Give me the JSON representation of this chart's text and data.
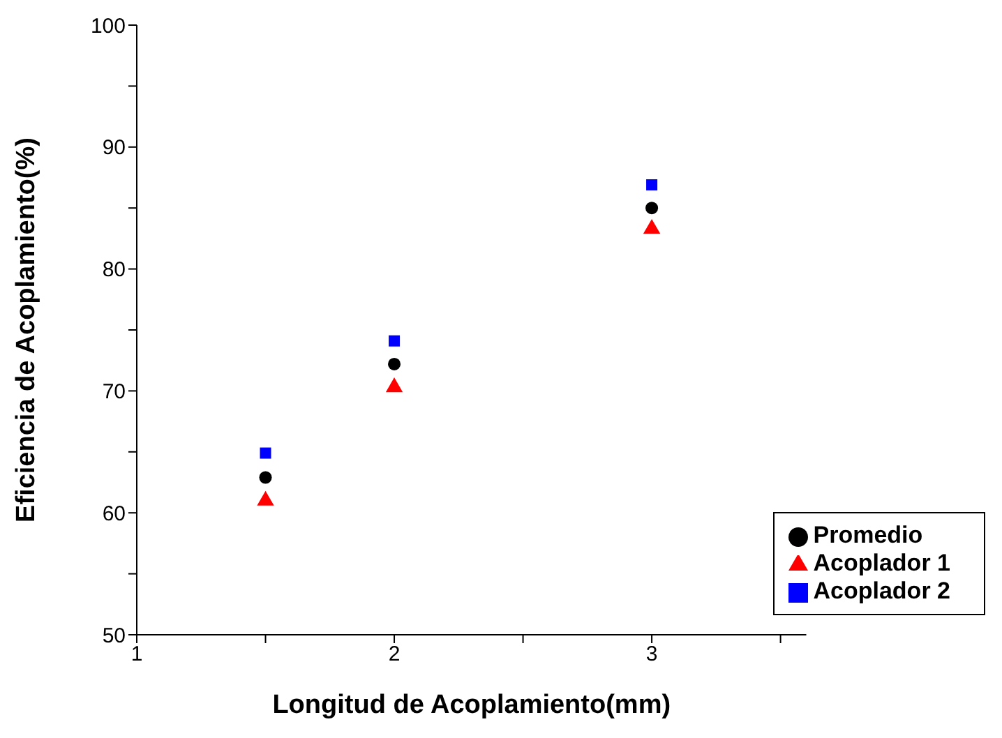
{
  "chart_data": {
    "type": "scatter",
    "xlabel": "Longitud de Acoplamiento(mm)",
    "ylabel": "Eficiencia de Acoplamiento(%)",
    "x": [
      1.5,
      2,
      3
    ],
    "series": [
      {
        "name": "Promedio",
        "color": "#000000",
        "marker": "circle",
        "values": [
          62.9,
          72.2,
          85.0
        ]
      },
      {
        "name": "Acoplador 1",
        "color": "#ff0000",
        "marker": "triangle",
        "values": [
          61.0,
          70.3,
          83.3
        ]
      },
      {
        "name": "Acoplador 2",
        "color": "#0000ff",
        "marker": "square",
        "values": [
          64.9,
          74.1,
          86.9
        ]
      }
    ],
    "xlim": [
      1,
      3.6
    ],
    "xticks": [
      1,
      {
        "value": 1.5,
        "label": null
      },
      2,
      {
        "value": 2.5,
        "label": null
      },
      3,
      {
        "value": 3.5,
        "label": null
      }
    ],
    "ylim": [
      50,
      100
    ],
    "yticks": [
      50,
      {
        "value": 55,
        "label": null
      },
      60,
      {
        "value": 65,
        "label": null
      },
      70,
      {
        "value": 75,
        "label": null
      },
      80,
      {
        "value": 85,
        "label": null
      },
      90,
      {
        "value": 95,
        "label": null
      },
      100
    ],
    "grid": false,
    "legend": "bottom right"
  }
}
